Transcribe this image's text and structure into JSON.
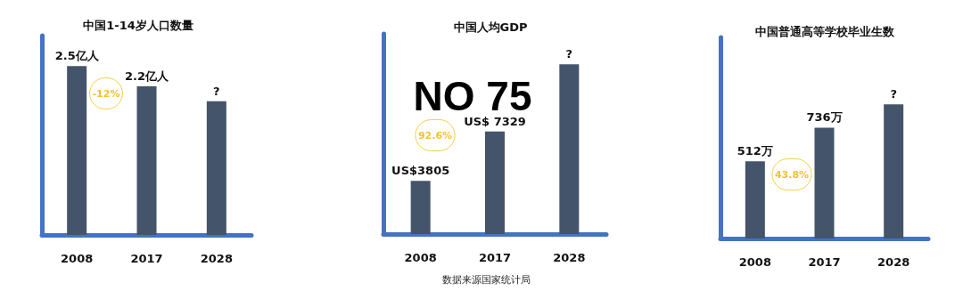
{
  "chart_data": [
    {
      "type": "bar",
      "title": "中国1-14岁人口数量",
      "categories": [
        "2008",
        "2017",
        "2028"
      ],
      "values": [
        2.5,
        2.2,
        1.98
      ],
      "color": "#44546a",
      "value_labels": [
        "2.5亿人",
        "2.2亿人",
        "?"
      ],
      "annotations": [
        "-12%"
      ]
    },
    {
      "type": "bar",
      "title": "中国人均GDP",
      "categories": [
        "2008",
        "2017",
        "2028"
      ],
      "values": [
        3805,
        7329,
        12120
      ],
      "color": "#44546a",
      "value_labels": [
        "US$3805",
        "US$ 7329",
        "?"
      ],
      "annotations": [
        "NO 75",
        "92.6%",
        "数据来源国家统计局"
      ]
    },
    {
      "type": "bar",
      "title": "中国普通高等学校毕业生数",
      "categories": [
        "2008",
        "2017",
        "2028"
      ],
      "values": [
        512,
        736,
        890
      ],
      "color": "#44546a",
      "value_labels": [
        "512万",
        "736万",
        "?"
      ],
      "annotations": [
        "43.8%"
      ]
    }
  ]
}
